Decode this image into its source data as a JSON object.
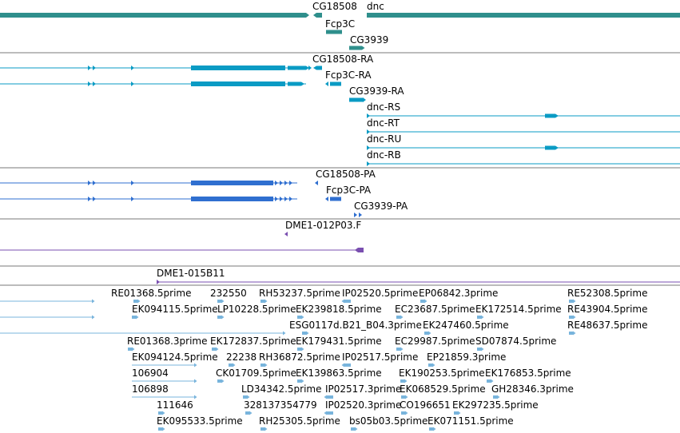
{
  "colors": {
    "gene": "#2f8f8c",
    "transcript": "#0a9bc4",
    "protein": "#2f6fd0",
    "clone": "#7a4fb0",
    "est": "#78b4dc",
    "divider": "#7a7a7a"
  },
  "tracks": {
    "genes": {
      "labels": [
        "CG18508",
        "dnc",
        "Fcp3C",
        "CG3939"
      ]
    },
    "transcripts": {
      "labels": [
        "CG18508-RA",
        "Fcp3C-RA",
        "CG3939-RA",
        "dnc-RS",
        "dnc-RT",
        "dnc-RU",
        "dnc-RB"
      ]
    },
    "proteins": {
      "labels": [
        "CG18508-PA",
        "Fcp3C-PA",
        "CG3939-PA"
      ]
    },
    "clone_ends": {
      "labels": [
        "DME1-012P03.F"
      ]
    },
    "clones": {
      "labels": [
        "DME1-015B11"
      ]
    },
    "ests": {
      "labels": [
        "RE01368.5prime",
        "232550",
        "RH53237.5prime",
        "IP02520.5prime",
        "EP06842.3prime",
        "RE52308.5prime",
        "EK094115.5prime",
        "LP10228.5prime",
        "EK239818.5prime",
        "EC23687.5prime",
        "EK172514.5prime",
        "RE43904.5prime",
        "ESG0117d.B21_B04.3prime",
        "EK247460.5prime",
        "RE48637.5prime",
        "RE01368.3prime",
        "EK172837.5prime",
        "EK179431.5prime",
        "EC29987.5prime",
        "SD07874.5prime",
        "EK094124.5prime",
        "22238",
        "RH36872.5prime",
        "IP02517.5prime",
        "EP21859.3prime",
        "106904",
        "CK01709.5prime",
        "EK139863.5prime",
        "EK190253.5prime",
        "EK176853.5prime",
        "106898",
        "LD34342.5prime",
        "IP02517.3prime",
        "EK068529.5prime",
        "GH28346.3prime",
        "111646",
        "328137354779",
        "IP02520.3prime",
        "CO196651",
        "EK297235.5prime",
        "EK095533.5prime",
        "RH25305.5prime",
        "bs05b03.5prime",
        "EK071151.5prime"
      ]
    }
  }
}
